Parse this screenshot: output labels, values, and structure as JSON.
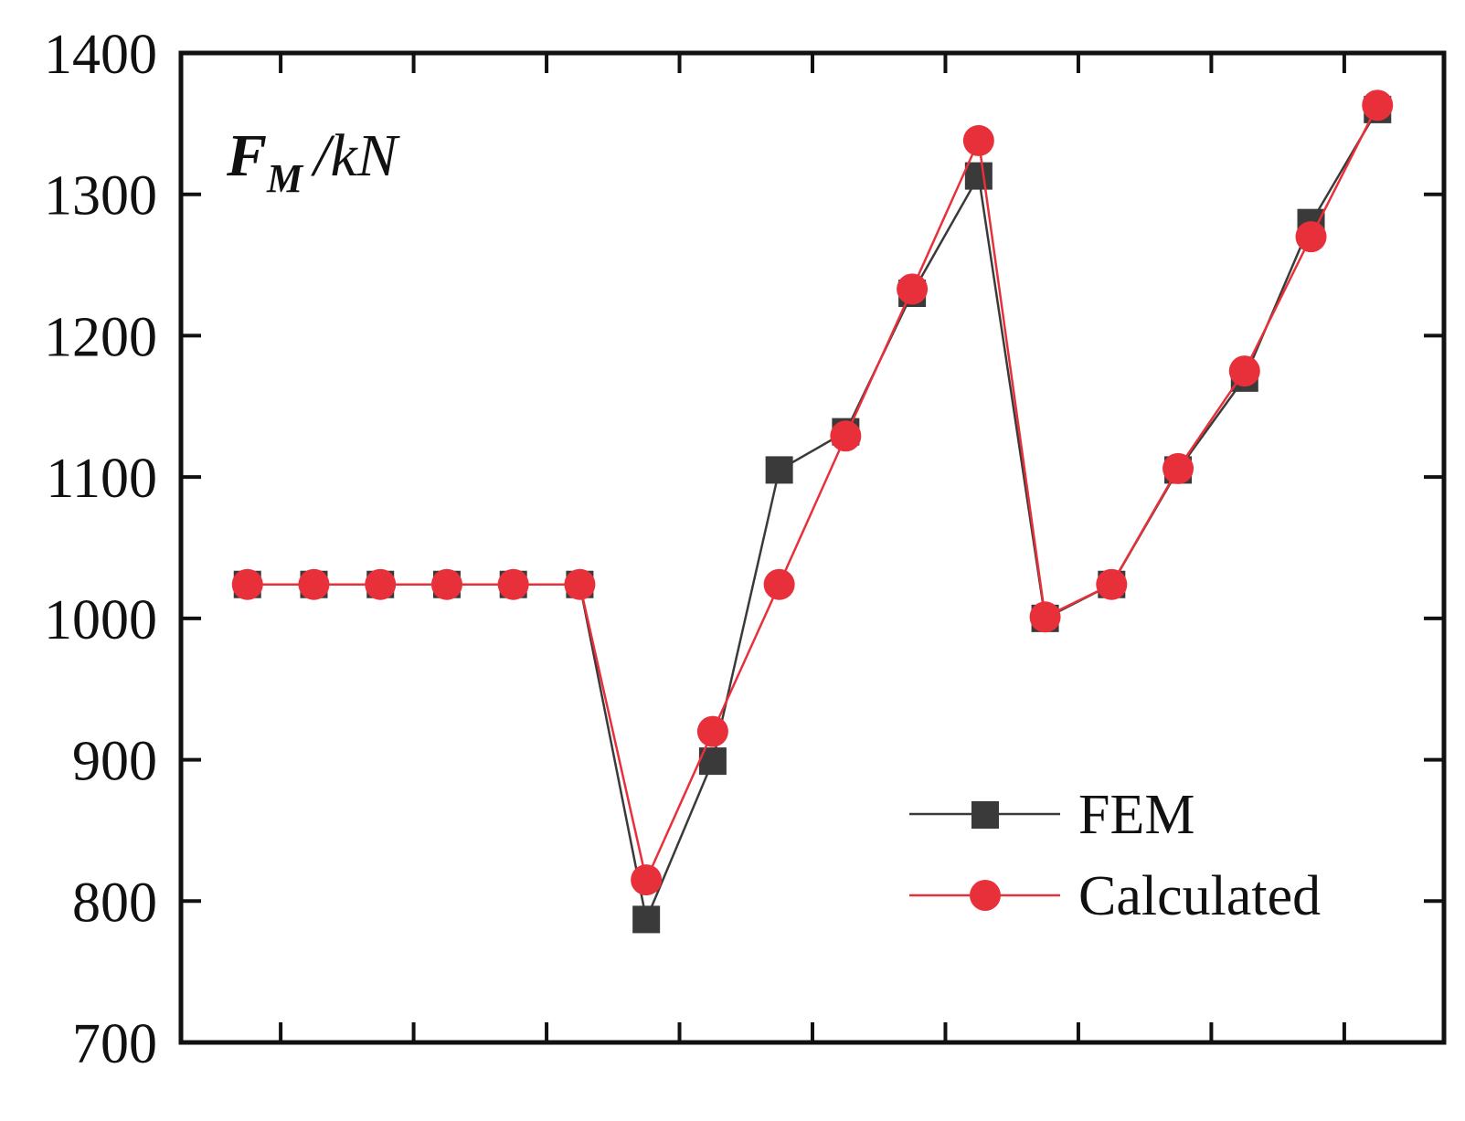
{
  "chart_data": {
    "type": "line",
    "title": "",
    "ylabel": "F_M /kN",
    "ylabel_parts": {
      "symbol": "F",
      "subscript": "M",
      "unit": "/kN"
    },
    "xlabel": "",
    "ylim": [
      700,
      1400
    ],
    "yticks": [
      700,
      800,
      900,
      1000,
      1100,
      1200,
      1300,
      1400
    ],
    "x": [
      1,
      2,
      3,
      4,
      5,
      6,
      7,
      8,
      9,
      10,
      11,
      12,
      13,
      14,
      15,
      16,
      17,
      18
    ],
    "xlim": [
      0,
      19
    ],
    "xticks": [
      1.5,
      3.5,
      5.5,
      7.5,
      9.5,
      11.5,
      13.5,
      15.5,
      17.5
    ],
    "series": [
      {
        "name": "FEM",
        "color": "#3a3a3a",
        "marker": "square",
        "values": [
          1024,
          1024,
          1024,
          1024,
          1024,
          1024,
          787,
          899,
          1105,
          1132,
          1230,
          1313,
          1000,
          1024,
          1105,
          1170,
          1280,
          1360
        ]
      },
      {
        "name": "Calculated",
        "color": "#e8303a",
        "marker": "circle",
        "values": [
          1024,
          1024,
          1024,
          1024,
          1024,
          1024,
          815,
          920,
          1024,
          1129,
          1233,
          1338,
          1001,
          1024,
          1106,
          1175,
          1270,
          1363
        ]
      }
    ],
    "legend": {
      "position": "bottom-right",
      "entries": [
        "FEM",
        "Calculated"
      ]
    },
    "grid": false
  }
}
